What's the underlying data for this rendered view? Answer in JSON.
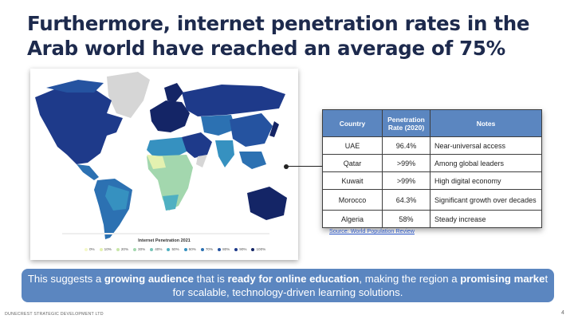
{
  "slide": {
    "title": "Furthermore, internet penetration rates in the Arab world have reached an average of 75%",
    "map": {
      "title": "Internet Penetration 2021",
      "legend": [
        {
          "label": "0%",
          "color": "#f4f8c8"
        },
        {
          "label": "10%",
          "color": "#e4f1b0"
        },
        {
          "label": "20%",
          "color": "#c8e6a8"
        },
        {
          "label": "30%",
          "color": "#a3d7ae"
        },
        {
          "label": "40%",
          "color": "#78c4b8"
        },
        {
          "label": "50%",
          "color": "#4fb0c2"
        },
        {
          "label": "60%",
          "color": "#3691c0"
        },
        {
          "label": "70%",
          "color": "#2c71b2"
        },
        {
          "label": "80%",
          "color": "#2553a0"
        },
        {
          "label": "90%",
          "color": "#1e3a8a"
        },
        {
          "label": "100%",
          "color": "#142566"
        }
      ]
    },
    "table": {
      "headers": [
        "Country",
        "Penetration Rate (2020)",
        "Notes"
      ],
      "rows": [
        {
          "country": "UAE",
          "rate": "96.4%",
          "notes": "Near-universal access"
        },
        {
          "country": "Qatar",
          "rate": ">99%",
          "notes": "Among global leaders"
        },
        {
          "country": "Kuwait",
          "rate": ">99%",
          "notes": "High digital economy"
        },
        {
          "country": "Morocco",
          "rate": "64.3%",
          "notes": "Significant growth over decades"
        },
        {
          "country": "Algeria",
          "rate": "58%",
          "notes": "Steady increase"
        }
      ]
    },
    "source_link": "Source: World Population Review",
    "banner": {
      "t1": "This suggests a ",
      "b1": "growing audience",
      "t2": " that is ",
      "b2": "ready for online education",
      "t3": ", making the region a ",
      "b3": "promising marke",
      "t4": "t for scalable, technology-driven learning solutions."
    },
    "footer": "DUNECREST STRATEGIC DEVELOPMENT LTD",
    "page_number": "4"
  }
}
